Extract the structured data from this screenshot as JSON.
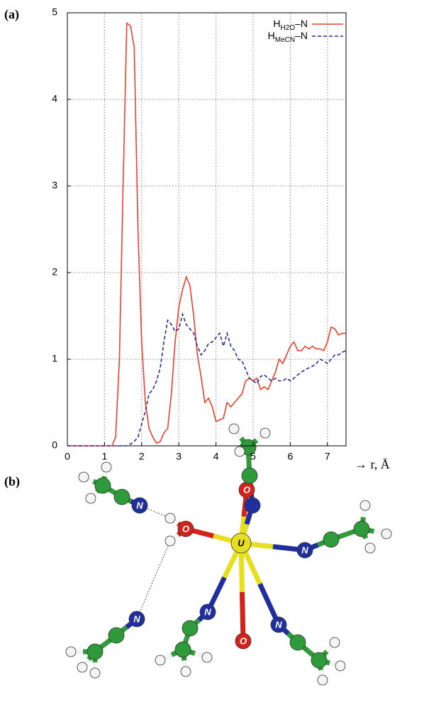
{
  "panel_labels": [
    "(a)",
    "(b)"
  ],
  "chart_data": {
    "type": "line",
    "x_label": "→ r, Å",
    "x": [
      0,
      0.1,
      0.2,
      0.3,
      0.4,
      0.5,
      0.6,
      0.7,
      0.8,
      0.9,
      1,
      1.1,
      1.2,
      1.3,
      1.4,
      1.5,
      1.6,
      1.7,
      1.8,
      1.9,
      2,
      2.1,
      2.2,
      2.3,
      2.4,
      2.5,
      2.6,
      2.7,
      2.8,
      2.9,
      3,
      3.1,
      3.2,
      3.3,
      3.4,
      3.5,
      3.6,
      3.7,
      3.8,
      3.9,
      4,
      4.1,
      4.2,
      4.3,
      4.4,
      4.5,
      4.6,
      4.7,
      4.8,
      4.9,
      5,
      5.1,
      5.2,
      5.3,
      5.4,
      5.5,
      5.6,
      5.7,
      5.8,
      5.9,
      6,
      6.1,
      6.2,
      6.3,
      6.4,
      6.5,
      6.6,
      6.7,
      6.8,
      6.9,
      7,
      7.1,
      7.2,
      7.3,
      7.4,
      7.5
    ],
    "series": [
      {
        "name": [
          "H",
          "H2O",
          "–N"
        ],
        "color": "#e8412c",
        "dash": false,
        "values": [
          0,
          0,
          0,
          0,
          0,
          0,
          0,
          0,
          0,
          0,
          0,
          0,
          0,
          0.1,
          1.0,
          3.0,
          4.88,
          4.85,
          4.6,
          2.5,
          1.2,
          0.5,
          0.2,
          0.1,
          0.03,
          0.05,
          0.15,
          0.2,
          0.6,
          1.2,
          1.6,
          1.8,
          1.95,
          1.85,
          1.5,
          1.05,
          0.8,
          0.5,
          0.55,
          0.45,
          0.28,
          0.3,
          0.32,
          0.5,
          0.45,
          0.5,
          0.55,
          0.6,
          0.75,
          0.78,
          0.75,
          0.78,
          0.65,
          0.68,
          0.65,
          0.75,
          0.85,
          1.0,
          0.95,
          1.05,
          1.15,
          1.2,
          1.1,
          1.1,
          1.15,
          1.12,
          1.15,
          1.12,
          1.12,
          1.1,
          1.2,
          1.37,
          1.35,
          1.28,
          1.3,
          1.3
        ]
      },
      {
        "name": [
          "H",
          "MeCN",
          "–N"
        ],
        "color": "#2a2f8f",
        "dash": true,
        "values": [
          0,
          0,
          0,
          0,
          0,
          0,
          0,
          0,
          0,
          0,
          0,
          0,
          0,
          0,
          0,
          0,
          0,
          0.02,
          0.05,
          0.1,
          0.25,
          0.4,
          0.6,
          0.65,
          0.75,
          0.9,
          1.2,
          1.45,
          1.4,
          1.32,
          1.35,
          1.52,
          1.4,
          1.35,
          1.3,
          1.15,
          1.05,
          1.1,
          1.18,
          1.2,
          1.25,
          1.3,
          1.15,
          1.3,
          1.15,
          1.1,
          1.0,
          0.98,
          0.88,
          0.78,
          0.75,
          0.72,
          0.8,
          0.82,
          0.78,
          0.75,
          0.78,
          0.75,
          0.75,
          0.78,
          0.75,
          0.78,
          0.82,
          0.85,
          0.88,
          0.9,
          0.92,
          0.95,
          1.0,
          0.98,
          0.95,
          1.0,
          1.05,
          1.05,
          1.08,
          1.1
        ]
      }
    ],
    "xlim": [
      0,
      7.5
    ],
    "xticks": [
      0,
      1,
      2,
      3,
      4,
      5,
      6,
      7
    ],
    "ylim": [
      0,
      5
    ],
    "yticks": [
      0,
      1,
      2,
      3,
      4,
      5
    ],
    "grid": true,
    "legend": "top-right"
  },
  "molecule": {
    "atom_labels": [
      "N",
      "O",
      "O",
      "U",
      "N",
      "N",
      "O",
      "N",
      "N"
    ]
  }
}
